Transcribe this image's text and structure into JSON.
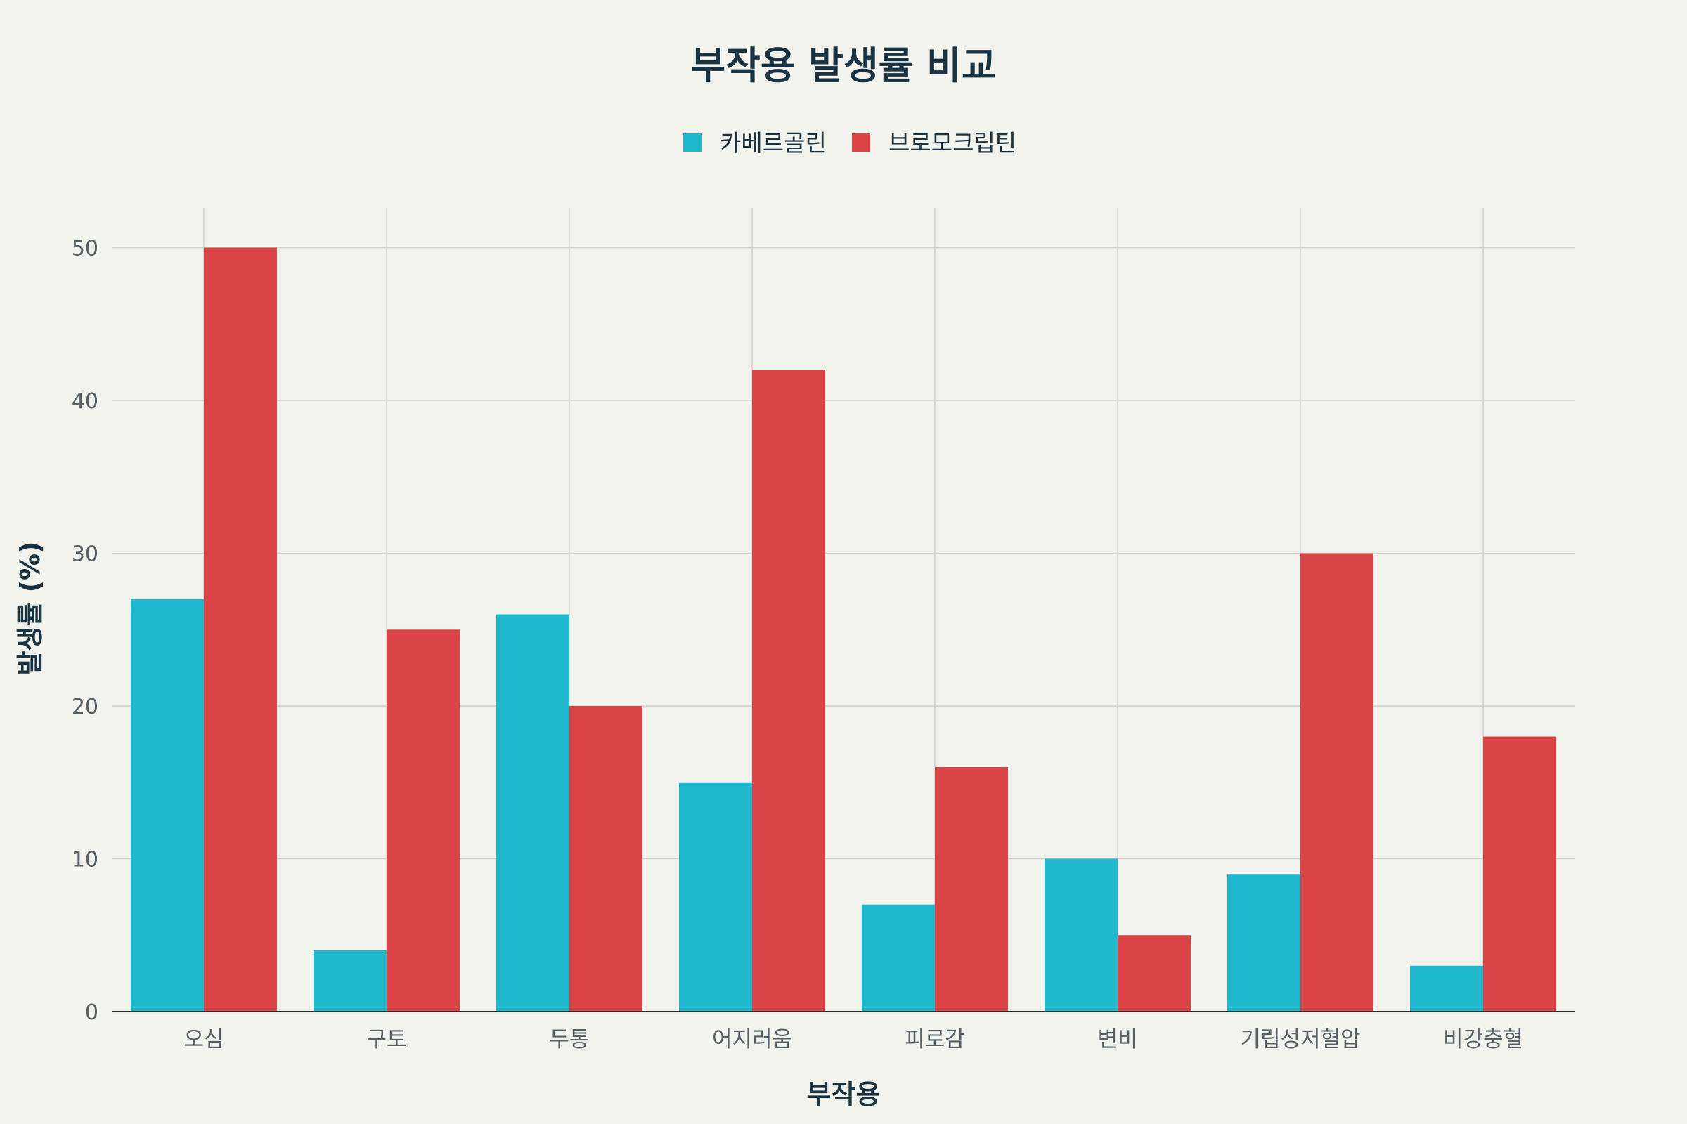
{
  "chart_data": {
    "type": "bar",
    "title": "부작용 발생률 비교",
    "xlabel": "부작용",
    "ylabel": "발생률 (%)",
    "categories": [
      "오심",
      "구토",
      "두통",
      "어지러움",
      "피로감",
      "변비",
      "기립성저혈압",
      "비강충혈"
    ],
    "series": [
      {
        "name": "카베르골린",
        "color": "#20b8cc",
        "values": [
          27,
          4,
          26,
          15,
          7,
          10,
          9,
          3
        ]
      },
      {
        "name": "브로모크립틴",
        "color": "#db4447",
        "values": [
          50,
          25,
          20,
          42,
          16,
          5,
          30,
          18
        ]
      }
    ],
    "ylim": [
      0,
      52.6
    ],
    "yticks": [
      0,
      10,
      20,
      30,
      40,
      50
    ],
    "grid": true,
    "legend_position": "top-center"
  }
}
